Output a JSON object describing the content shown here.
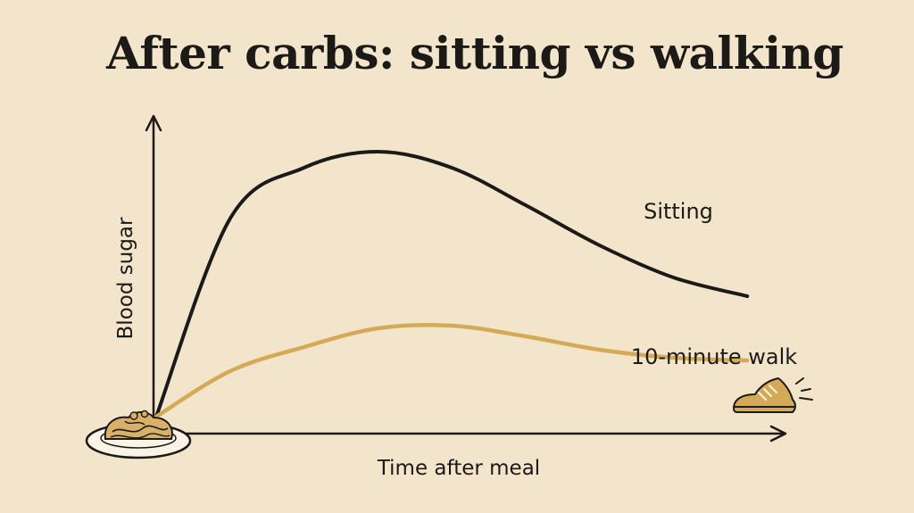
{
  "title": "After carbs: sitting vs walking",
  "chart_data": {
    "type": "line",
    "xlabel": "Time after meal",
    "ylabel": "Blood sugar",
    "x": [
      0,
      1,
      2,
      3,
      4,
      5,
      6,
      7,
      8
    ],
    "series": [
      {
        "name": "Sitting",
        "values": [
          0,
          74,
          93,
          99,
          93,
          79,
          64,
          52,
          45
        ],
        "color": "#1c1a17"
      },
      {
        "name": "10-minute walk",
        "values": [
          0,
          17,
          26,
          33,
          34,
          30,
          25,
          22,
          21
        ],
        "color": "#d4aa56"
      }
    ],
    "xlim": [
      0,
      9
    ],
    "ylim": [
      0,
      110
    ],
    "grid": false,
    "legend": "inline labels at line ends",
    "icons": [
      "pasta-plate-icon",
      "walking-shoe-icon"
    ]
  }
}
